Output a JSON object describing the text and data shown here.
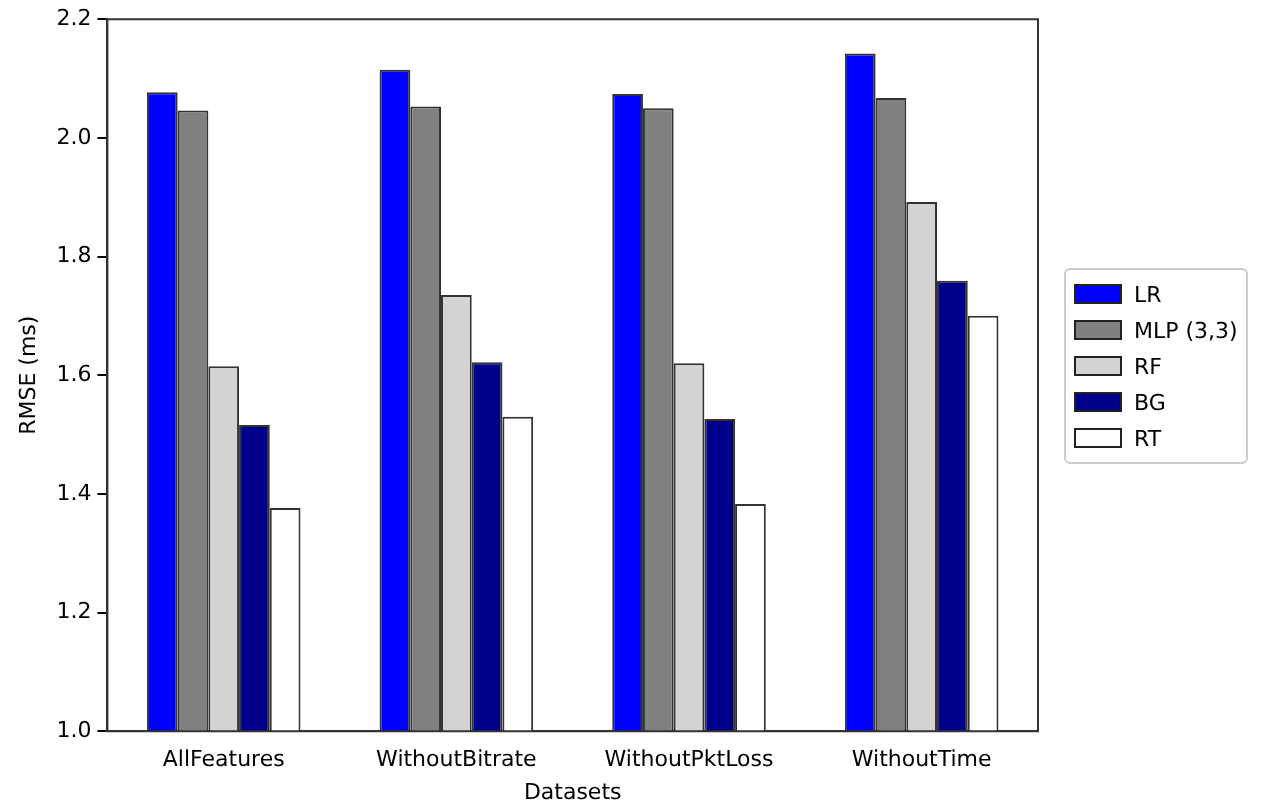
{
  "chart_data": {
    "type": "bar",
    "xlabel": "Datasets",
    "ylabel": "RMSE (ms)",
    "categories": [
      "AllFeatures",
      "WithoutBitrate",
      "WithoutPktLoss",
      "WithoutTime"
    ],
    "series": [
      {
        "name": "LR",
        "color": "#0000ff",
        "values": [
          2.077,
          2.115,
          2.074,
          2.142
        ]
      },
      {
        "name": "MLP (3,3)",
        "color": "#808080",
        "values": [
          2.046,
          2.053,
          2.05,
          2.067
        ]
      },
      {
        "name": "RF",
        "color": "#d3d3d3",
        "values": [
          1.615,
          1.735,
          1.62,
          1.892
        ]
      },
      {
        "name": "BG",
        "color": "#00008b",
        "values": [
          1.516,
          1.622,
          1.526,
          1.759
        ]
      },
      {
        "name": "RT",
        "color": "#ffffff",
        "values": [
          1.376,
          1.53,
          1.383,
          1.7
        ]
      }
    ],
    "ylim": [
      1.0,
      2.2
    ],
    "yticks": [
      {
        "value": 1.0,
        "label": "1.0"
      },
      {
        "value": 1.2,
        "label": "1.2"
      },
      {
        "value": 1.4,
        "label": "1.4"
      },
      {
        "value": 1.6,
        "label": "1.6"
      },
      {
        "value": 1.8,
        "label": "1.8"
      },
      {
        "value": 2.0,
        "label": "2.0"
      },
      {
        "value": 2.2,
        "label": "2.2"
      }
    ],
    "grid": false,
    "legend": "right"
  }
}
